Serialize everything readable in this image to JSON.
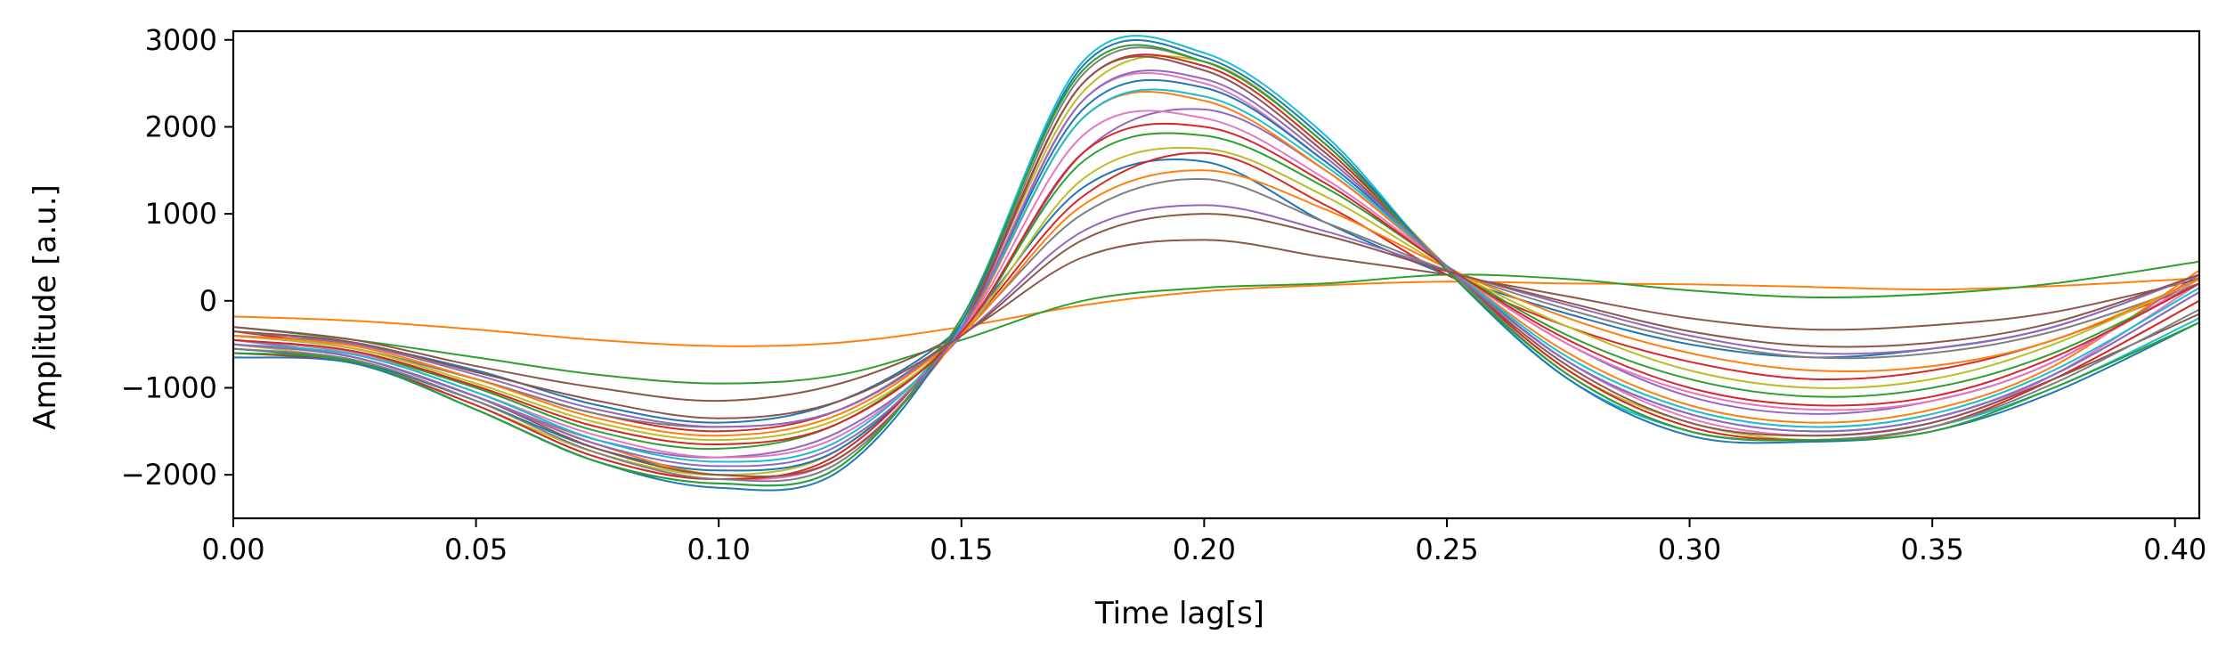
{
  "chart_data": {
    "type": "line",
    "title": "",
    "xlabel": "Time lag[s]",
    "ylabel": "Amplitude [a.u.]",
    "xlim": [
      0.0,
      0.405
    ],
    "ylim": [
      -2500,
      3100
    ],
    "xticks": [
      0.0,
      0.05,
      0.1,
      0.15,
      0.2,
      0.25,
      0.3,
      0.35,
      0.4
    ],
    "xtick_labels": [
      "0.00",
      "0.05",
      "0.10",
      "0.15",
      "0.20",
      "0.25",
      "0.30",
      "0.35",
      "0.40"
    ],
    "yticks": [
      -2000,
      -1000,
      0,
      1000,
      2000,
      3000
    ],
    "ytick_labels": [
      "−2000",
      "−1000",
      "0",
      "1000",
      "2000",
      "3000"
    ],
    "grid": false,
    "legend": "none",
    "x": [
      0.0,
      0.025,
      0.05,
      0.075,
      0.1,
      0.125,
      0.15,
      0.175,
      0.2,
      0.225,
      0.25,
      0.275,
      0.3,
      0.325,
      0.35,
      0.375,
      0.405
    ],
    "series": [
      {
        "color": "#1f77b4",
        "values": [
          -400,
          -500,
          -800,
          -1200,
          -1400,
          -1150,
          -300,
          1300,
          1600,
          900,
          300,
          -150,
          -500,
          -650,
          -550,
          -300,
          300
        ]
      },
      {
        "color": "#ff7f0e",
        "values": [
          -180,
          -230,
          -330,
          -450,
          -520,
          -480,
          -300,
          -50,
          110,
          180,
          220,
          200,
          190,
          160,
          130,
          170,
          260
        ]
      },
      {
        "color": "#2ca02c",
        "values": [
          -300,
          -450,
          -650,
          -850,
          -950,
          -850,
          -450,
          0,
          150,
          200,
          300,
          250,
          120,
          40,
          80,
          200,
          450
        ]
      },
      {
        "color": "#d62728",
        "values": [
          -350,
          -550,
          -900,
          -1300,
          -1500,
          -1250,
          -350,
          1200,
          1700,
          1100,
          300,
          -300,
          -700,
          -900,
          -800,
          -450,
          200
        ]
      },
      {
        "color": "#9467bd",
        "values": [
          -450,
          -650,
          -1100,
          -1600,
          -1800,
          -1500,
          -400,
          1700,
          2200,
          1500,
          400,
          -500,
          -1100,
          -1300,
          -1150,
          -700,
          300
        ]
      },
      {
        "color": "#8c564b",
        "values": [
          -300,
          -450,
          -750,
          -1000,
          -1150,
          -950,
          -380,
          500,
          700,
          500,
          300,
          50,
          -200,
          -330,
          -280,
          -130,
          250
        ]
      },
      {
        "color": "#e377c2",
        "values": [
          -550,
          -700,
          -1200,
          -1800,
          -2050,
          -1800,
          -300,
          2300,
          2500,
          1600,
          400,
          -700,
          -1350,
          -1550,
          -1400,
          -850,
          200
        ]
      },
      {
        "color": "#7f7f7f",
        "values": [
          -400,
          -550,
          -900,
          -1300,
          -1450,
          -1250,
          -350,
          1000,
          1400,
          900,
          350,
          -100,
          -450,
          -650,
          -600,
          -350,
          200
        ]
      },
      {
        "color": "#bcbd22",
        "values": [
          -500,
          -700,
          -1200,
          -1750,
          -2000,
          -1700,
          -250,
          2400,
          2750,
          1800,
          400,
          -800,
          -1400,
          -1600,
          -1450,
          -900,
          0
        ]
      },
      {
        "color": "#17becf",
        "values": [
          -600,
          -700,
          -1250,
          -1850,
          -2100,
          -1900,
          -200,
          2750,
          2850,
          1900,
          350,
          -900,
          -1500,
          -1600,
          -1450,
          -1000,
          -200
        ]
      },
      {
        "color": "#1f77b4",
        "values": [
          -550,
          -700,
          -1150,
          -1700,
          -1950,
          -1700,
          -300,
          2200,
          2450,
          1600,
          400,
          -700,
          -1300,
          -1500,
          -1350,
          -850,
          100
        ]
      },
      {
        "color": "#ff7f0e",
        "values": [
          -500,
          -650,
          -1100,
          -1650,
          -2000,
          -1800,
          -350,
          2100,
          2300,
          1500,
          400,
          -600,
          -1200,
          -1400,
          -1250,
          -750,
          350
        ]
      },
      {
        "color": "#2ca02c",
        "values": [
          -450,
          -600,
          -1000,
          -1500,
          -1700,
          -1400,
          -350,
          1600,
          1900,
          1300,
          400,
          -400,
          -900,
          -1100,
          -1000,
          -600,
          200
        ]
      },
      {
        "color": "#d62728",
        "values": [
          -600,
          -720,
          -1200,
          -1800,
          -2050,
          -1750,
          -250,
          2500,
          2700,
          1750,
          380,
          -800,
          -1450,
          -1600,
          -1450,
          -900,
          0
        ]
      },
      {
        "color": "#9467bd",
        "values": [
          -350,
          -500,
          -850,
          -1250,
          -1450,
          -1250,
          -400,
          800,
          1100,
          800,
          350,
          -50,
          -400,
          -600,
          -550,
          -300,
          300
        ]
      },
      {
        "color": "#8c564b",
        "values": [
          -500,
          -650,
          -1100,
          -1700,
          -2000,
          -1800,
          -300,
          2500,
          2650,
          1700,
          380,
          -750,
          -1400,
          -1550,
          -1400,
          -900,
          -150
        ]
      },
      {
        "color": "#e377c2",
        "values": [
          -450,
          -600,
          -1050,
          -1550,
          -1800,
          -1550,
          -350,
          1900,
          2100,
          1400,
          400,
          -500,
          -1050,
          -1250,
          -1150,
          -700,
          250
        ]
      },
      {
        "color": "#7f7f7f",
        "values": [
          -550,
          -680,
          -1150,
          -1750,
          -2050,
          -1850,
          -250,
          2600,
          2750,
          1800,
          380,
          -850,
          -1500,
          -1600,
          -1450,
          -950,
          -100
        ]
      },
      {
        "color": "#bcbd22",
        "values": [
          -400,
          -550,
          -950,
          -1400,
          -1600,
          -1350,
          -380,
          1400,
          1750,
          1200,
          380,
          -300,
          -800,
          -1000,
          -900,
          -500,
          250
        ]
      },
      {
        "color": "#17becf",
        "values": [
          -500,
          -620,
          -1050,
          -1600,
          -1850,
          -1600,
          -300,
          2100,
          2350,
          1550,
          400,
          -650,
          -1250,
          -1450,
          -1300,
          -800,
          150
        ]
      },
      {
        "color": "#1f77b4",
        "values": [
          -650,
          -720,
          -1250,
          -1850,
          -2150,
          -1950,
          -250,
          2700,
          2800,
          1850,
          350,
          -900,
          -1550,
          -1620,
          -1500,
          -1050,
          -250
        ]
      },
      {
        "color": "#ff7f0e",
        "values": [
          -400,
          -520,
          -900,
          -1350,
          -1550,
          -1300,
          -380,
          1100,
          1500,
          1050,
          380,
          -200,
          -600,
          -800,
          -750,
          -450,
          250
        ]
      },
      {
        "color": "#2ca02c",
        "values": [
          -600,
          -700,
          -1250,
          -1850,
          -2100,
          -1900,
          -200,
          2650,
          2750,
          1800,
          350,
          -850,
          -1500,
          -1600,
          -1500,
          -1000,
          -250
        ]
      },
      {
        "color": "#d62728",
        "values": [
          -450,
          -580,
          -980,
          -1450,
          -1650,
          -1400,
          -360,
          1700,
          2000,
          1350,
          390,
          -450,
          -1000,
          -1200,
          -1100,
          -650,
          200
        ]
      },
      {
        "color": "#9467bd",
        "values": [
          -500,
          -650,
          -1100,
          -1650,
          -1900,
          -1650,
          -320,
          2300,
          2550,
          1650,
          390,
          -700,
          -1300,
          -1500,
          -1350,
          -850,
          100
        ]
      },
      {
        "color": "#8c564b",
        "values": [
          -350,
          -480,
          -820,
          -1150,
          -1350,
          -1150,
          -400,
          700,
          1000,
          750,
          340,
          -20,
          -350,
          -520,
          -480,
          -250,
          300
        ]
      }
    ]
  }
}
